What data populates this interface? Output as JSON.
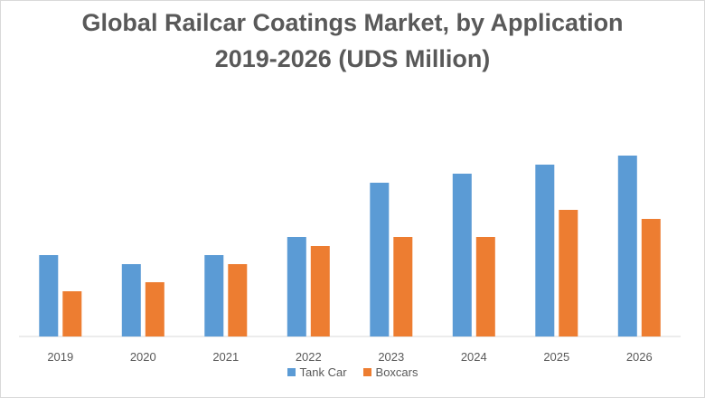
{
  "chart_data": {
    "type": "bar",
    "title": "Global  Railcar Coatings Market, by Application",
    "subtitle": "2019-2026 (UDS Million)",
    "xlabel": "",
    "ylabel": "",
    "categories": [
      "2019",
      "2020",
      "2021",
      "2022",
      "2023",
      "2024",
      "2025",
      "2026"
    ],
    "series": [
      {
        "name": "Tank Car",
        "color": "#5b9bd5",
        "values": [
          90,
          80,
          90,
          110,
          170,
          180,
          190,
          200
        ]
      },
      {
        "name": "Boxcars",
        "color": "#ed7d31",
        "values": [
          50,
          60,
          80,
          100,
          110,
          110,
          140,
          130
        ]
      }
    ],
    "ylim": [
      0,
      220
    ],
    "grid": false,
    "y_axis_visible": false,
    "legend_position": "bottom"
  }
}
